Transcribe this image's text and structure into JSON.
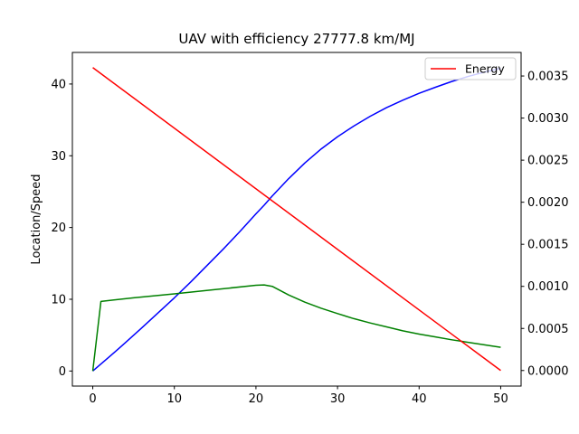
{
  "chart_data": {
    "type": "line",
    "title": "UAV with efficiency 27777.8 km/MJ",
    "xlabel": "",
    "ylabel": "Location/Speed",
    "y2label": "",
    "xlim": [
      -2.5,
      52.5
    ],
    "ylim": [
      -2.1,
      44.4
    ],
    "y2lim": [
      -0.000185,
      0.00378
    ],
    "x_ticks": [
      0,
      10,
      20,
      30,
      40,
      50
    ],
    "y_ticks": [
      0,
      10,
      20,
      30,
      40
    ],
    "y2_ticks": [
      0.0,
      0.0005,
      0.001,
      0.0015,
      0.002,
      0.0025,
      0.003,
      0.0035
    ],
    "y2_tick_labels": [
      "0.0000",
      "0.0005",
      "0.0010",
      "0.0015",
      "0.0020",
      "0.0025",
      "0.0030",
      "0.0035"
    ],
    "legend": {
      "placement": "upper right",
      "entries": [
        "Energy"
      ]
    },
    "grid": false,
    "series": [
      {
        "name": "",
        "axis": "left",
        "color": "#0000ff",
        "x": [
          0,
          2,
          4,
          6,
          8,
          10,
          12,
          14,
          16,
          18,
          20,
          21,
          22,
          24,
          26,
          28,
          30,
          32,
          34,
          36,
          38,
          40,
          42,
          44,
          46,
          48,
          50
        ],
        "y": [
          0,
          1.95,
          3.95,
          6.0,
          8.1,
          10.2,
          12.4,
          14.7,
          17.0,
          19.4,
          21.9,
          23.1,
          24.4,
          26.8,
          29.0,
          30.95,
          32.65,
          34.15,
          35.5,
          36.7,
          37.75,
          38.7,
          39.55,
          40.35,
          41.05,
          41.65,
          42.2
        ]
      },
      {
        "name": "",
        "axis": "left",
        "color": "#008000",
        "x": [
          0,
          1,
          5,
          10,
          15,
          20,
          21,
          22,
          24,
          26,
          28,
          30,
          32,
          34,
          36,
          38,
          40,
          42,
          44,
          46,
          48,
          50
        ],
        "y": [
          0,
          9.7,
          10.2,
          10.75,
          11.35,
          11.95,
          12.0,
          11.8,
          10.6,
          9.6,
          8.75,
          8.0,
          7.3,
          6.7,
          6.15,
          5.6,
          5.15,
          4.75,
          4.35,
          4.0,
          3.65,
          3.3
        ]
      },
      {
        "name": "Energy",
        "axis": "right",
        "color": "#ff0000",
        "x": [
          0,
          50
        ],
        "y": [
          0.0036,
          0.0
        ]
      }
    ]
  }
}
